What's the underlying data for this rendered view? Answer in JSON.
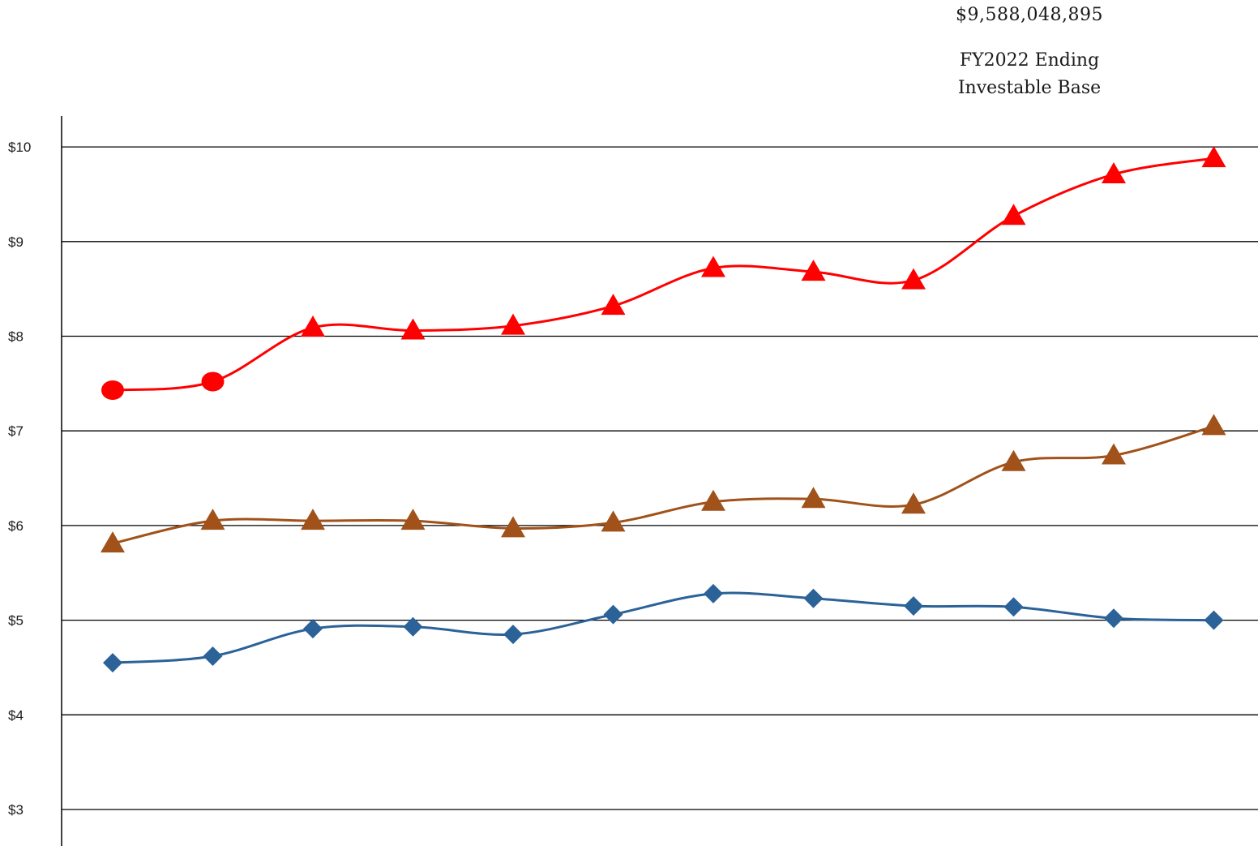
{
  "header": {
    "amount": "$9,588,048,895",
    "caption_line1": "FY2022 Ending",
    "caption_line2": "Investable Base"
  },
  "chart_data": {
    "type": "line",
    "title": "",
    "xlabel": "",
    "ylabel": "",
    "ylim": [
      3,
      10
    ],
    "yticks": [
      "$10",
      "$9",
      "$8",
      "$7",
      "$6",
      "$5",
      "$4",
      "$3"
    ],
    "ytick_values": [
      10,
      9,
      8,
      7,
      6,
      5,
      4,
      3
    ],
    "grid": true,
    "smooth": true,
    "x": [
      1,
      2,
      3,
      4,
      5,
      6,
      7,
      8,
      9,
      10,
      11,
      12
    ],
    "series": [
      {
        "color": "#ff0000",
        "marker": "triangle",
        "marker_overrides": {
          "0": "circle",
          "1": "circle"
        },
        "values": [
          7.43,
          7.52,
          8.09,
          8.06,
          8.11,
          8.32,
          8.72,
          8.68,
          8.59,
          9.27,
          9.71,
          9.88
        ]
      },
      {
        "color": "#a0521a",
        "marker": "triangle",
        "values": [
          5.81,
          6.05,
          6.05,
          6.05,
          5.97,
          6.03,
          6.25,
          6.28,
          6.22,
          6.67,
          6.74,
          7.05
        ]
      },
      {
        "color": "#2b6298",
        "marker": "diamond",
        "values": [
          4.55,
          4.62,
          4.91,
          4.93,
          4.85,
          5.06,
          5.28,
          5.23,
          5.15,
          5.14,
          5.02,
          5.0
        ]
      }
    ]
  }
}
